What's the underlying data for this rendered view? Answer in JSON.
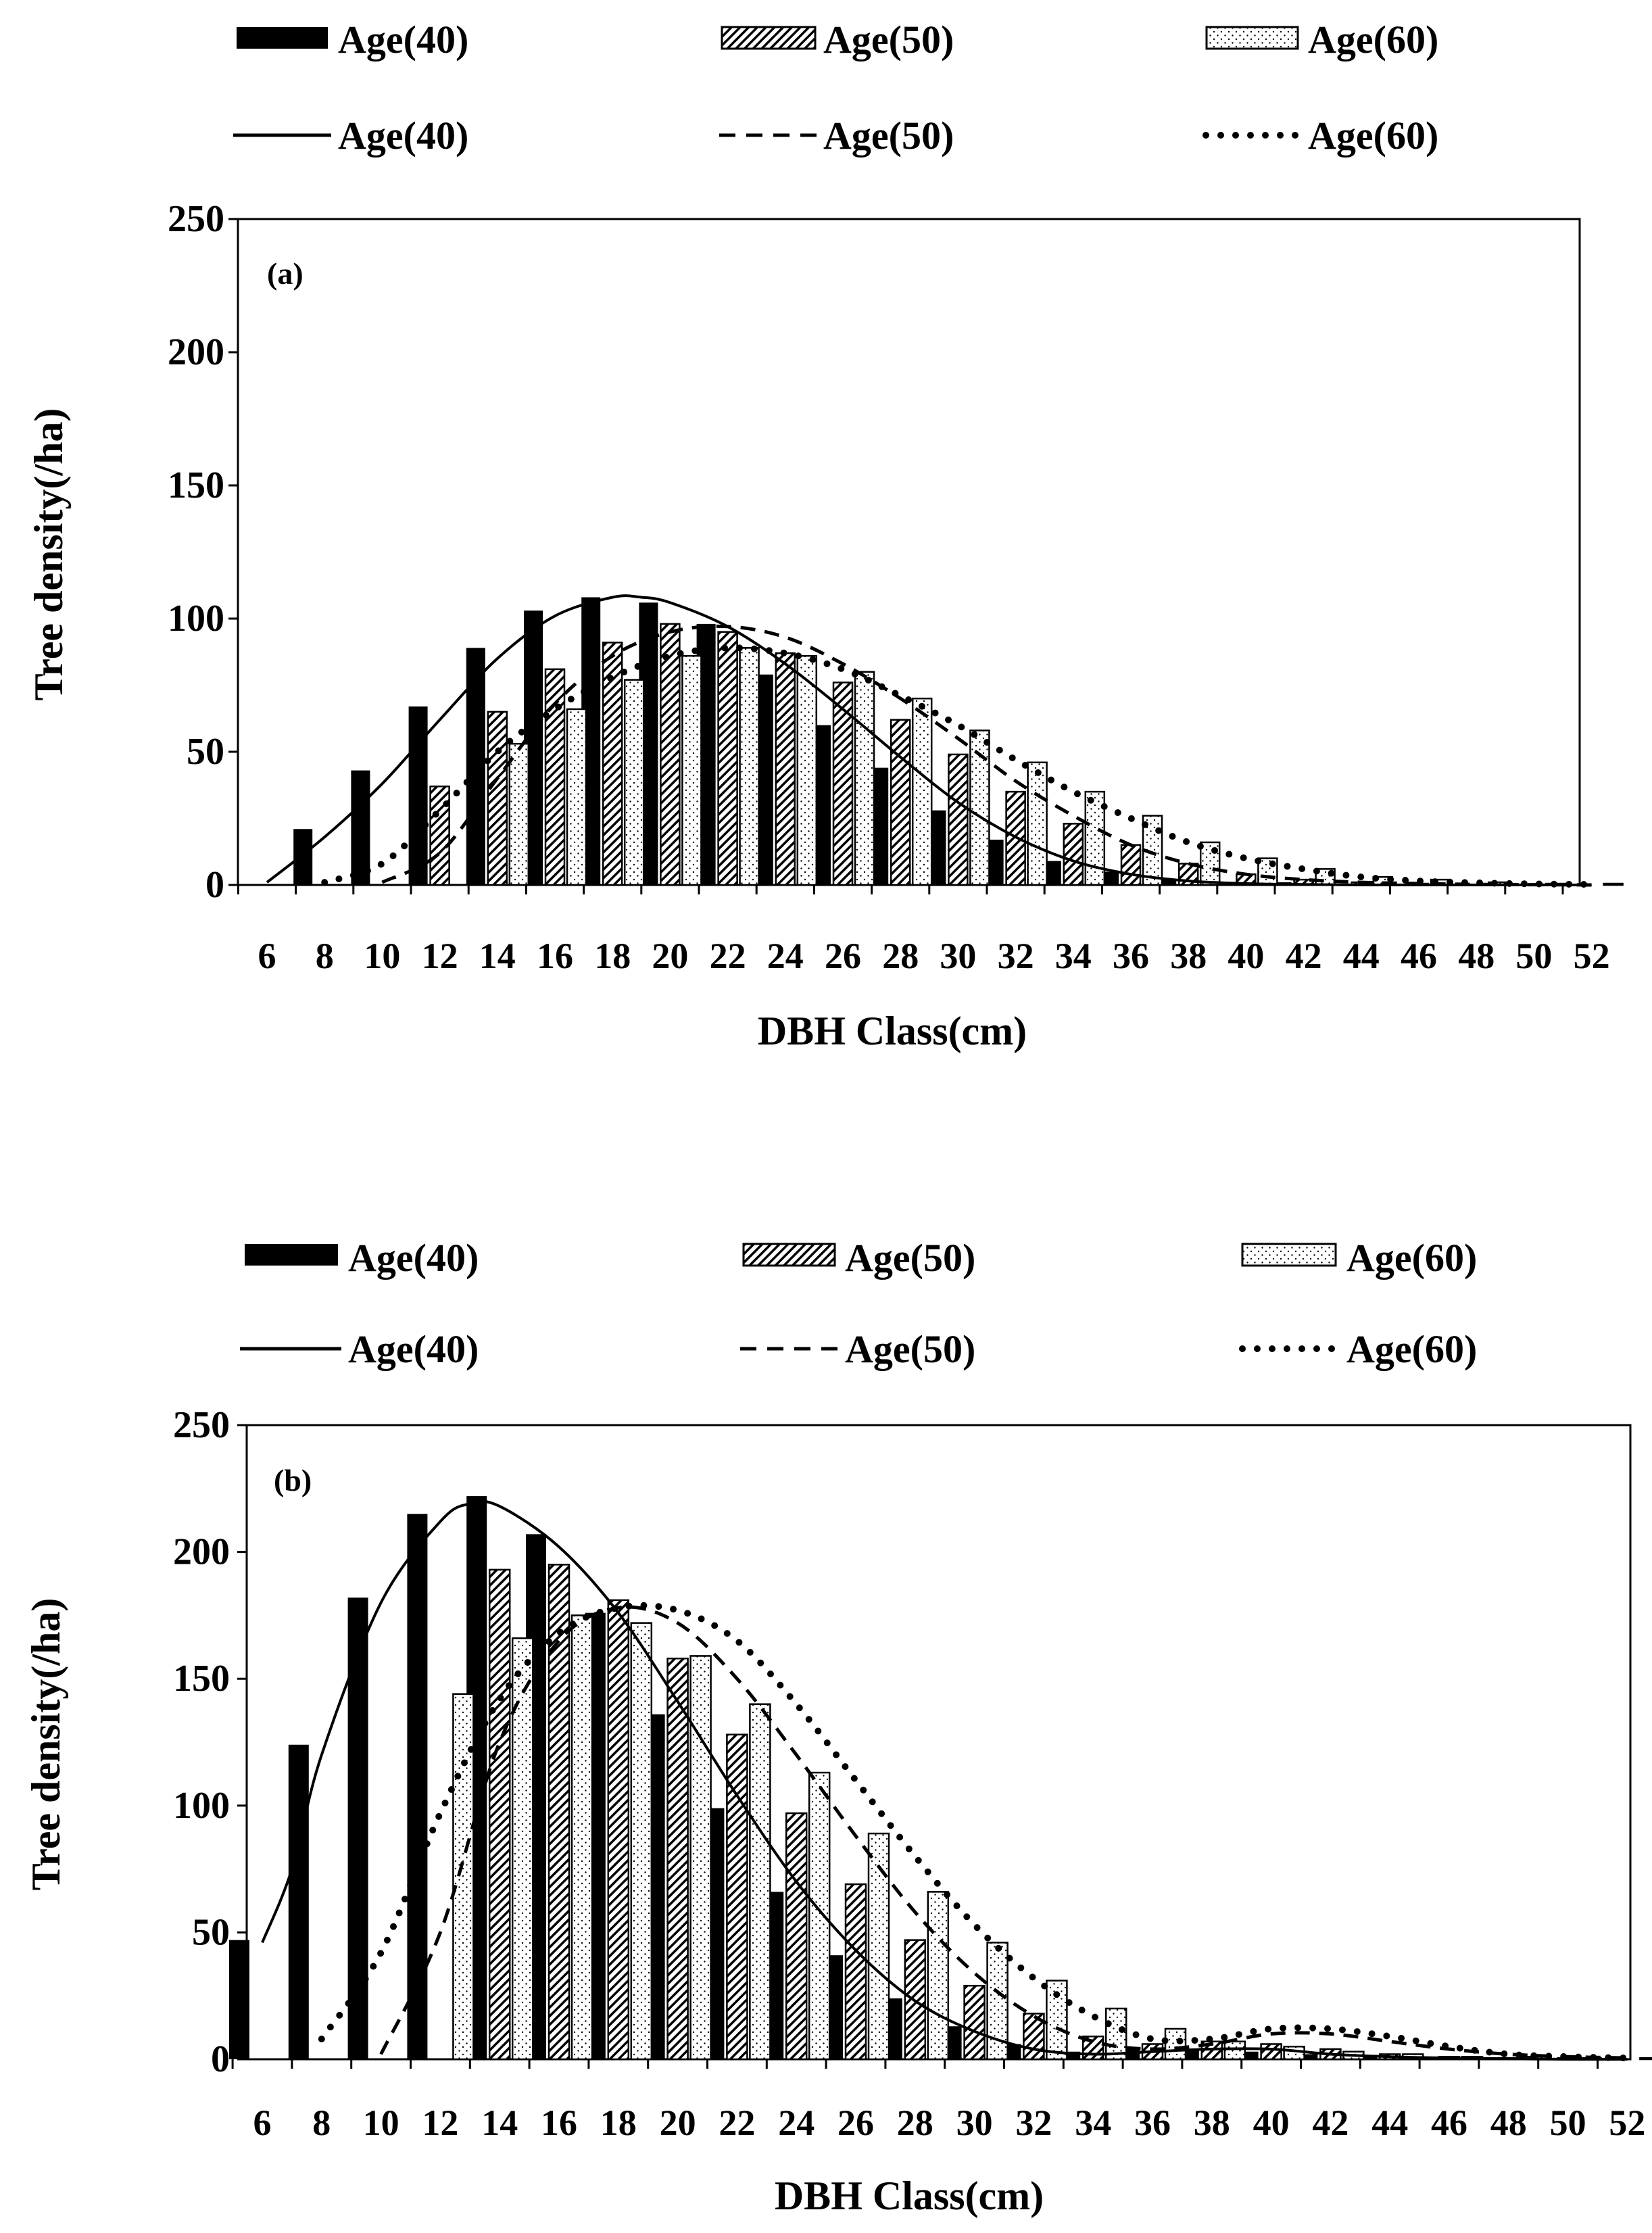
{
  "chart_data": [
    {
      "type": "bar",
      "panel_label": "(a)",
      "title": "",
      "xlabel": "DBH Class(cm)",
      "ylabel": "Tree density(/ha)",
      "ylim": [
        0,
        250
      ],
      "yticks": [
        "0",
        "50",
        "100",
        "150",
        "200",
        "250"
      ],
      "categories": [
        "6",
        "8",
        "10",
        "12",
        "14",
        "16",
        "18",
        "20",
        "22",
        "24",
        "26",
        "28",
        "30",
        "32",
        "34",
        "36",
        "38",
        "40",
        "42",
        "44",
        "46",
        "48",
        "50",
        "52"
      ],
      "tick_labels": [
        "6",
        "8",
        "10",
        "12",
        "14",
        "16",
        "18",
        "20",
        "22",
        "24",
        "26",
        "28",
        "30",
        "32",
        "34",
        "36",
        "38",
        "40",
        "42",
        "44",
        "46",
        "48",
        "50",
        "52"
      ],
      "legend_position": "top",
      "series": [
        {
          "name": "Age(40)",
          "kind": "bar",
          "pattern": "solid",
          "values": [
            0,
            21,
            43,
            67,
            89,
            103,
            108,
            106,
            98,
            79,
            60,
            44,
            28,
            17,
            9,
            5,
            2,
            1,
            1,
            0.5,
            0,
            0,
            0,
            0
          ]
        },
        {
          "name": "Age(50)",
          "kind": "bar",
          "pattern": "hatch",
          "values": [
            0,
            0,
            0,
            37,
            65,
            81,
            91,
            98,
            95,
            87,
            76,
            62,
            49,
            35,
            23,
            15,
            8,
            4,
            2,
            1,
            0.5,
            0,
            0,
            0
          ]
        },
        {
          "name": "Age(60)",
          "kind": "bar",
          "pattern": "dots",
          "values": [
            0,
            0,
            0,
            0,
            53,
            66,
            77,
            86,
            89,
            86,
            80,
            70,
            58,
            46,
            35,
            26,
            16,
            10,
            6,
            3,
            2,
            1,
            0.5,
            0.5
          ]
        },
        {
          "name": "Age(40)",
          "kind": "line",
          "style": "solid",
          "x": [
            6,
            8,
            10,
            12,
            14,
            16,
            18,
            19,
            20,
            22,
            24,
            26,
            28,
            30,
            32,
            34,
            36,
            38,
            40,
            42,
            44,
            46,
            48,
            50,
            52
          ],
          "values": [
            1,
            18,
            38,
            62,
            85,
            101,
            108,
            108,
            106,
            97,
            83,
            66,
            48,
            31,
            18,
            9,
            4,
            1.5,
            0.5,
            0.2,
            0,
            0,
            0,
            0,
            0
          ]
        },
        {
          "name": "Age(50)",
          "kind": "line",
          "style": "dashed",
          "x": [
            10,
            12,
            14,
            16,
            18,
            20,
            22,
            24,
            26,
            28,
            30,
            32,
            34,
            36,
            38,
            40,
            42,
            44,
            46,
            48,
            50,
            52
          ],
          "values": [
            1,
            12,
            40,
            68,
            86,
            95,
            97,
            93,
            83,
            70,
            55,
            39,
            26,
            15,
            8,
            4,
            2,
            1,
            0.5,
            0.2,
            0.1,
            0
          ]
        },
        {
          "name": "Age(60)",
          "kind": "line",
          "style": "dotted",
          "x": [
            8,
            10,
            12,
            14,
            16,
            18,
            20,
            22,
            24,
            26,
            28,
            30,
            32,
            34,
            36,
            38,
            40,
            42,
            44,
            46,
            48,
            50,
            52
          ],
          "values": [
            1,
            8,
            28,
            50,
            66,
            78,
            86,
            89,
            87,
            81,
            71,
            60,
            47,
            35,
            25,
            16,
            10,
            6,
            3,
            1.5,
            0.8,
            0.4,
            0.2
          ]
        }
      ]
    },
    {
      "type": "bar",
      "panel_label": "(b)",
      "title": "",
      "xlabel": "DBH Class(cm)",
      "ylabel": "Tree density(/ha)",
      "ylim": [
        0,
        250
      ],
      "yticks": [
        "0",
        "50",
        "100",
        "150",
        "200",
        "250"
      ],
      "categories": [
        "6",
        "8",
        "10",
        "12",
        "14",
        "16",
        "18",
        "20",
        "22",
        "24",
        "26",
        "28",
        "30",
        "32",
        "34",
        "36",
        "38",
        "40",
        "42",
        "44",
        "46",
        "48",
        "50",
        "52"
      ],
      "tick_labels": [
        "6",
        "8",
        "10",
        "12",
        "14",
        "16",
        "18",
        "20",
        "22",
        "24",
        "26",
        "28",
        "30",
        "32",
        "34",
        "36",
        "38",
        "40",
        "42",
        "44",
        "46",
        "48",
        "50",
        "52"
      ],
      "legend_position": "top",
      "series": [
        {
          "name": "Age(40)",
          "kind": "bar",
          "pattern": "solid",
          "values": [
            47,
            124,
            182,
            215,
            222,
            207,
            176,
            136,
            99,
            66,
            41,
            24,
            13,
            6,
            3,
            4,
            4,
            3,
            2,
            1,
            1,
            0.5,
            0,
            0
          ]
        },
        {
          "name": "Age(50)",
          "kind": "bar",
          "pattern": "hatch",
          "values": [
            0,
            0,
            0,
            0,
            193,
            195,
            181,
            158,
            128,
            97,
            69,
            47,
            29,
            18,
            9,
            6,
            7,
            6,
            4,
            2,
            1,
            0.5,
            0.5,
            0
          ]
        },
        {
          "name": "Age(60)",
          "kind": "bar",
          "pattern": "dots",
          "values": [
            0,
            0,
            0,
            144,
            166,
            175,
            172,
            159,
            140,
            113,
            89,
            66,
            46,
            31,
            20,
            12,
            7,
            5,
            3,
            2,
            1,
            1,
            0.5,
            0.5
          ]
        },
        {
          "name": "Age(40)",
          "kind": "line",
          "style": "solid",
          "x": [
            6,
            7,
            8,
            10,
            12,
            13,
            14,
            16,
            18,
            20,
            22,
            24,
            26,
            28,
            30,
            32,
            34,
            36,
            38,
            40,
            42,
            44,
            46,
            48,
            50,
            52
          ],
          "values": [
            46,
            75,
            120,
            180,
            212,
            219,
            218,
            202,
            176,
            141,
            104,
            70,
            43,
            23,
            11,
            4,
            2,
            3,
            4,
            4,
            2,
            1,
            0.5,
            0.2,
            0,
            0
          ]
        },
        {
          "name": "Age(50)",
          "kind": "line",
          "style": "dashed",
          "x": [
            10,
            12,
            14,
            16,
            18,
            20,
            22,
            24,
            26,
            28,
            30,
            32,
            34,
            36,
            38,
            40,
            42,
            44,
            46,
            48,
            50,
            52
          ],
          "values": [
            2,
            50,
            125,
            165,
            178,
            172,
            150,
            120,
            88,
            58,
            34,
            17,
            7,
            4,
            6,
            10,
            10,
            7,
            4,
            2,
            1,
            0.5
          ]
        },
        {
          "name": "Age(60)",
          "kind": "line",
          "style": "dotted",
          "x": [
            8,
            10,
            12,
            14,
            16,
            18,
            20,
            22,
            24,
            26,
            28,
            30,
            32,
            34,
            36,
            38,
            40,
            42,
            44,
            46,
            48,
            50,
            52
          ],
          "values": [
            8,
            42,
            97,
            142,
            168,
            178,
            177,
            165,
            140,
            110,
            80,
            53,
            32,
            17,
            8,
            8,
            12,
            12,
            9,
            5,
            2,
            1,
            0.5
          ]
        }
      ]
    }
  ]
}
